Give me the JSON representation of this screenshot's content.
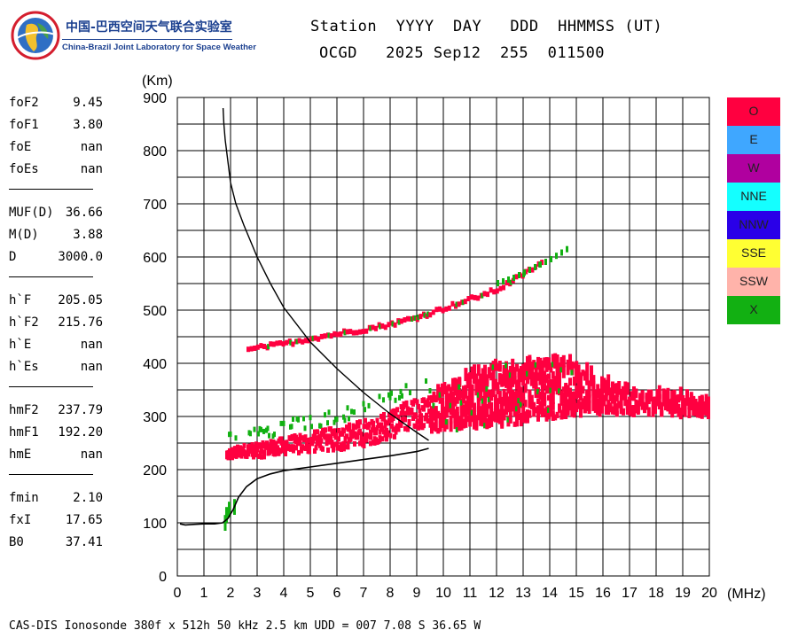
{
  "header": {
    "line1": "Station  YYYY  DAY   DDD  HHMMSS (UT)",
    "line2": "OCGD   2025 Sep12  255  011500"
  },
  "logo": {
    "cn": "中国-巴西空间天气联合实验室",
    "en": "China-Brazil Joint Laboratory for Space Weather"
  },
  "params": [
    {
      "label": "foF2",
      "value": "9.45"
    },
    {
      "label": "foF1",
      "value": "3.80"
    },
    {
      "label": "foE",
      "value": "nan"
    },
    {
      "label": "foEs",
      "value": "nan"
    },
    {
      "sep": true
    },
    {
      "label": "MUF(D)",
      "value": "36.66"
    },
    {
      "label": "M(D)",
      "value": "3.88"
    },
    {
      "label": "D",
      "value": "3000.0"
    },
    {
      "sep": true
    },
    {
      "label": "h`F",
      "value": "205.05"
    },
    {
      "label": "h`F2",
      "value": "215.76"
    },
    {
      "label": "h`E",
      "value": "nan"
    },
    {
      "label": "h`Es",
      "value": "nan"
    },
    {
      "sep": true
    },
    {
      "label": "hmF2",
      "value": "237.79"
    },
    {
      "label": "hmF1",
      "value": "192.20"
    },
    {
      "label": "hmE",
      "value": "nan"
    },
    {
      "sep": true
    },
    {
      "label": "fmin",
      "value": "2.10"
    },
    {
      "label": "fxI",
      "value": "17.65"
    },
    {
      "label": "B0",
      "value": "37.41"
    }
  ],
  "legend": [
    {
      "label": "O",
      "color": "#ff0040"
    },
    {
      "label": "E",
      "color": "#3fa7ff"
    },
    {
      "label": "W",
      "color": "#b0009f"
    },
    {
      "label": "NNE",
      "color": "#14ffff"
    },
    {
      "label": "NNW",
      "color": "#2a00e8"
    },
    {
      "label": "SSE",
      "color": "#ffff33"
    },
    {
      "label": "SSW",
      "color": "#ffb3aa"
    },
    {
      "label": "X",
      "color": "#12b012"
    }
  ],
  "footer": "CAS-DIS Ionosonde 380f x 512h 50 kHz 2.5 km UDD = 007 7.08 S 36.65 W",
  "chart_data": {
    "type": "scatter",
    "xlabel": "(MHz)",
    "ylabel": "(Km)",
    "xlim": [
      0,
      20
    ],
    "ylim": [
      0,
      900
    ],
    "xticks": [
      "0",
      "1",
      "2",
      "3",
      "4",
      "5",
      "6",
      "7",
      "8",
      "9",
      "10",
      "11",
      "12",
      "13",
      "14",
      "15",
      "16",
      "17",
      "18",
      "19",
      "20"
    ],
    "yticks": [
      "0",
      "100",
      "200",
      "300",
      "400",
      "500",
      "600",
      "700",
      "800",
      "900"
    ],
    "grid": true,
    "legend_position": "right",
    "o_trace_colour": "#ff0040",
    "x_trace_colour": "#12b012",
    "profile_curve": {
      "x": [
        1.72,
        1.75,
        1.8,
        1.9,
        2.0,
        2.2,
        2.5,
        3.0,
        3.5,
        4.0,
        5.0,
        6.0,
        7.0,
        8.0,
        9.0,
        9.45
      ],
      "y": [
        880,
        850,
        820,
        780,
        740,
        700,
        660,
        600,
        550,
        505,
        440,
        390,
        345,
        305,
        270,
        255
      ]
    },
    "true_height_profile": {
      "x": [
        0.1,
        0.3,
        0.6,
        1.0,
        1.4,
        1.7,
        1.9,
        2.1,
        2.3,
        2.6,
        3.0,
        3.5,
        4.0,
        5.0,
        6.0,
        7.0,
        8.0,
        9.0,
        9.45
      ],
      "y": [
        98,
        96,
        97,
        98,
        98,
        100,
        108,
        125,
        148,
        168,
        183,
        192,
        198,
        205,
        212,
        219,
        226,
        234,
        240
      ]
    },
    "o_trace_lower": {
      "x": [
        1.8,
        2.5,
        3.0,
        4.0,
        5.0,
        6.0,
        7.0,
        8.0,
        8.5,
        9.0,
        9.45
      ],
      "y": [
        222,
        228,
        226,
        232,
        236,
        240,
        248,
        262,
        270,
        278,
        282
      ]
    },
    "o_trace_oblique": {
      "x": [
        2.6,
        3.0,
        4.0,
        5.0,
        6.0,
        7.0,
        8.0,
        9.0,
        10.0,
        11.0,
        12.0,
        13.0,
        13.7
      ],
      "y": [
        415,
        420,
        428,
        438,
        447,
        455,
        465,
        478,
        495,
        512,
        530,
        560,
        582
      ]
    },
    "o_trace_spread": {
      "x": [
        9.5,
        10.0,
        11.0,
        12.0,
        13.0,
        14.0,
        15.0,
        16.0,
        17.0,
        18.0,
        19.0,
        20.0
      ],
      "y_low": [
        265,
        268,
        272,
        276,
        282,
        290,
        296,
        300,
        298,
        296,
        294,
        292
      ],
      "y_high": [
        330,
        345,
        380,
        390,
        395,
        400,
        390,
        360,
        340,
        335,
        330,
        330
      ]
    },
    "x_trace_spurs": {
      "x": [
        1.75,
        1.8,
        1.9,
        2.1
      ],
      "y_low": [
        85,
        100,
        110,
        115
      ],
      "y_high": [
        108,
        120,
        128,
        135
      ]
    },
    "x_trace_oblique": {
      "x": [
        12.0,
        12.6,
        13.2,
        14.0,
        14.7
      ],
      "y": [
        545,
        555,
        570,
        590,
        612
      ]
    }
  }
}
